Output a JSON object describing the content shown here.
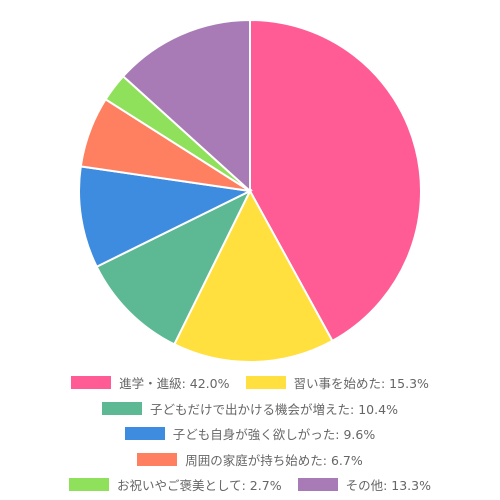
{
  "chart_data": {
    "type": "pie",
    "categories": [
      "進学・進級: 42.0%",
      "習い事を始めた: 15.3%",
      "子どもだけで出かける機会が増えた: 10.4%",
      "子ども自身が強く欲しがった: 9.6%",
      "周囲の家庭が持ち始めた: 6.7%",
      "お祝いやご褒美として: 2.7%",
      "その他: 13.3%"
    ],
    "values": [
      42.0,
      15.3,
      10.4,
      9.6,
      6.7,
      2.7,
      13.3
    ],
    "colors": [
      "#ff5c95",
      "#ffe03f",
      "#5cb993",
      "#3e8ce0",
      "#ff8061",
      "#8fe05a",
      "#a87bb6"
    ]
  }
}
